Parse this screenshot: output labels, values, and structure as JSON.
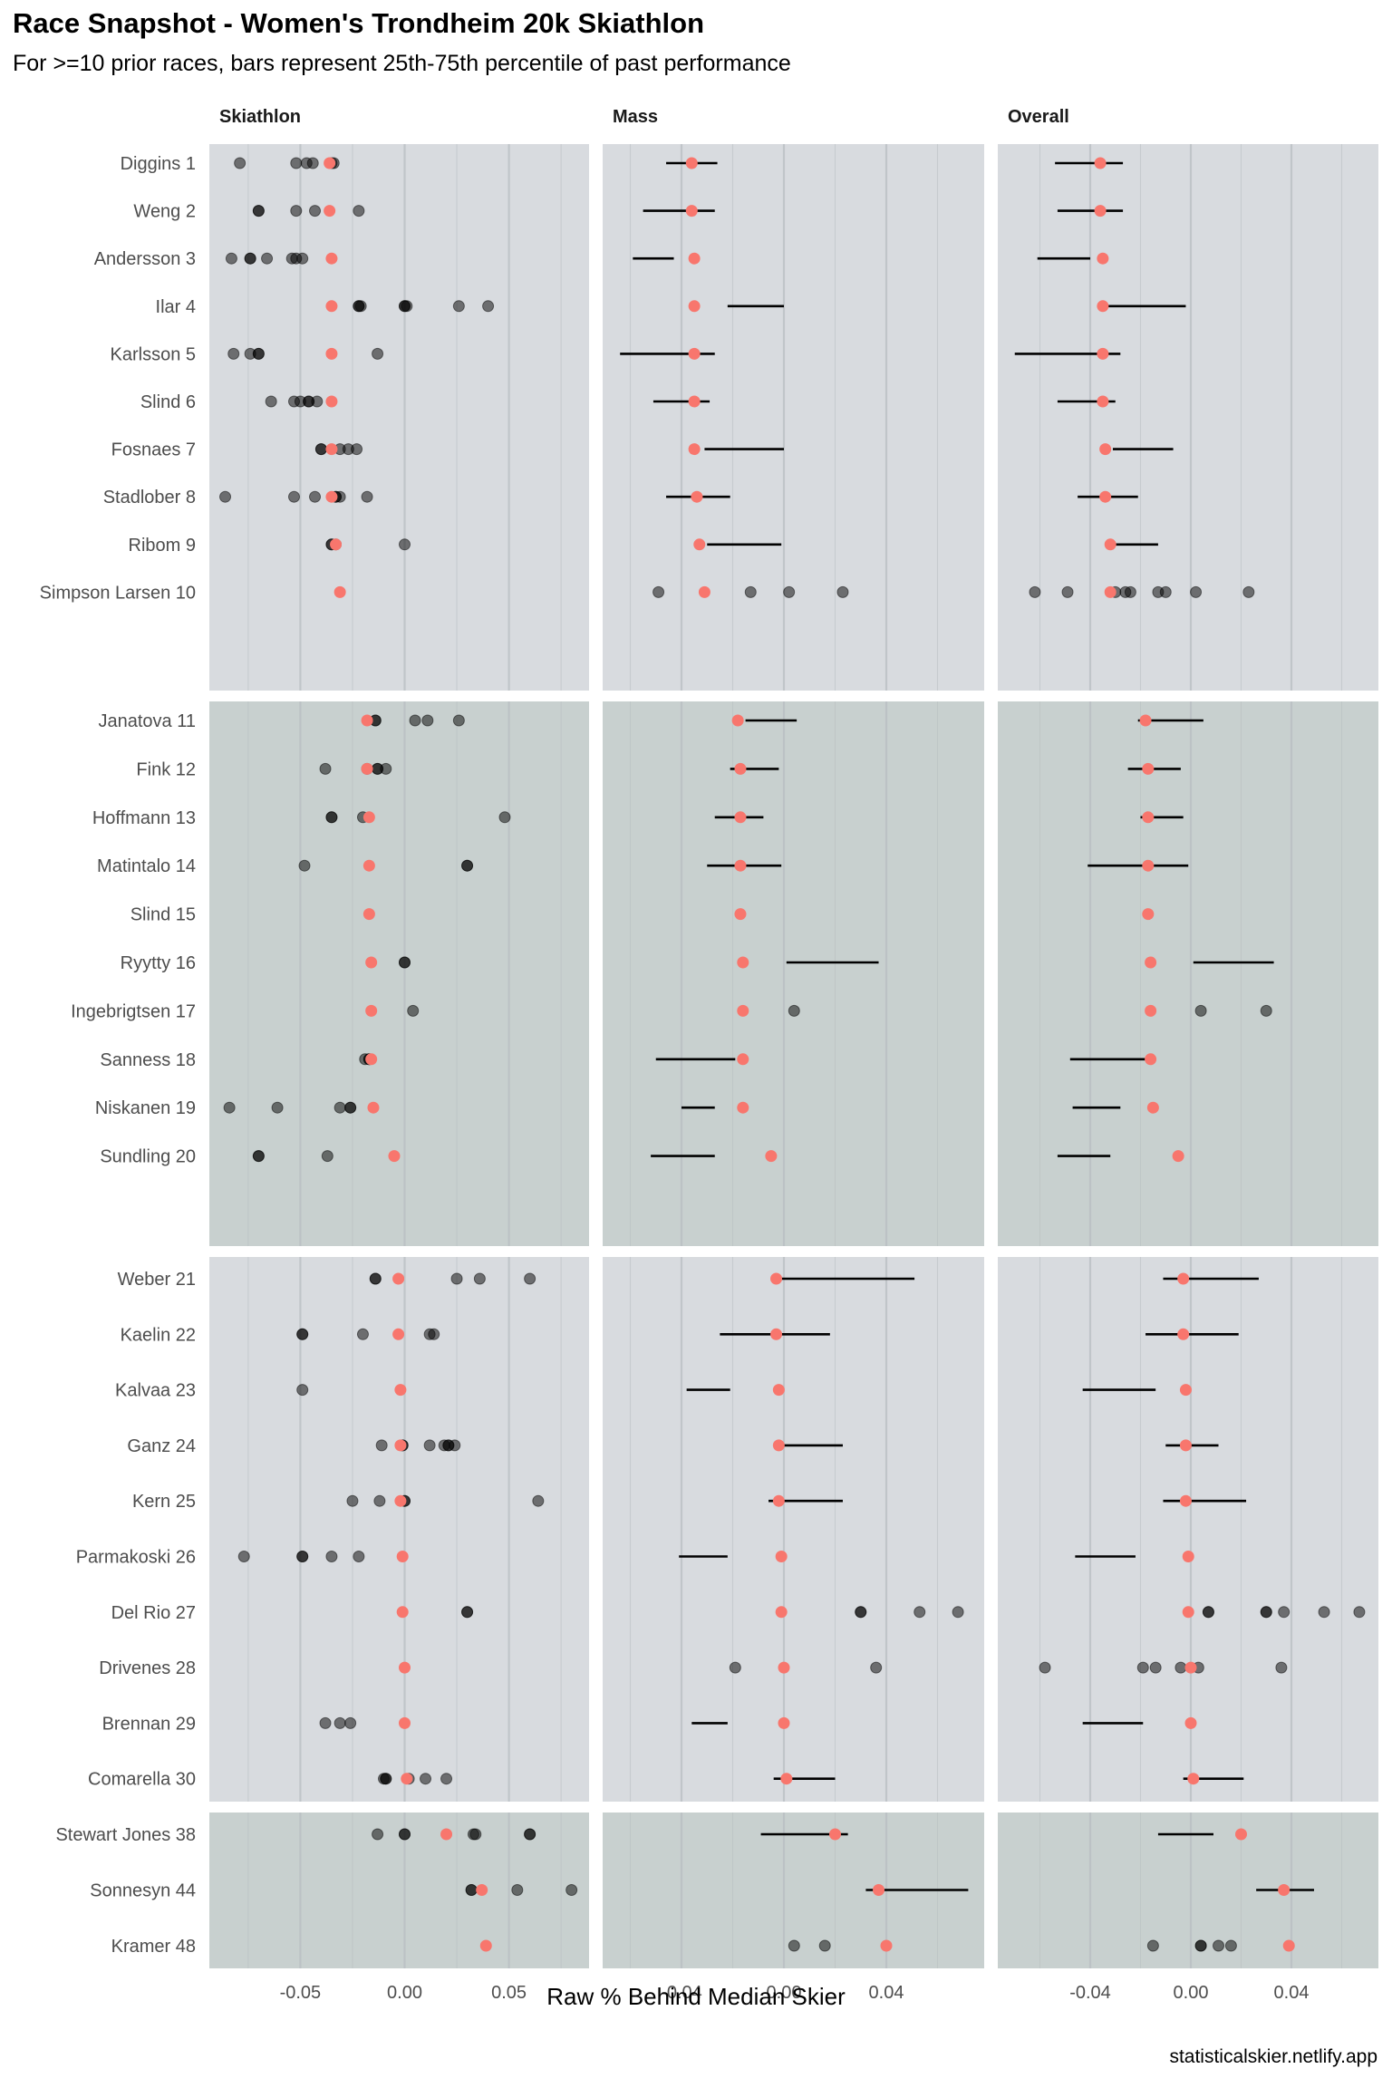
{
  "header": {
    "title": "Race Snapshot -  Women's Trondheim 20k Skiathlon",
    "subtitle": "For >=10 prior races, bars represent 25th-75th percentile of past performance"
  },
  "footer": {
    "credit": "statisticalskier.netlify.app"
  },
  "colors": {
    "current": "#f8766d",
    "history_point": "#000000",
    "iqr_bar": "#000000",
    "group_bg_a": "#d8dbdf",
    "group_bg_b": "#c8d0cf",
    "gridline": "#b9bec2"
  },
  "chart_data": {
    "type": "scatter",
    "title": "Race Snapshot -  Women's Trondheim 20k Skiathlon",
    "subtitle": "For >=10 prior races, bars represent 25th-75th percentile of past performance",
    "xlabel": "Raw % Behind Median Skier",
    "ylabel": "",
    "grid": true,
    "legend": "none",
    "facets": [
      {
        "name": "Skiathlon",
        "xlim": [
          -0.09,
          0.09
        ],
        "ticks": [
          -0.05,
          0.0,
          0.05
        ],
        "tick_labels": [
          "-0.05",
          "0.00",
          "0.05"
        ]
      },
      {
        "name": "Mass",
        "xlim": [
          -0.07,
          0.078
        ],
        "ticks": [
          -0.04,
          0.0,
          0.04
        ],
        "tick_labels": [
          "-0.04",
          "0.00",
          "0.04"
        ]
      },
      {
        "name": "Overall",
        "xlim": [
          -0.07,
          0.082
        ],
        "ticks": [
          -0.04,
          0.0,
          0.04
        ],
        "tick_labels": [
          "-0.04",
          "0.00",
          "0.04"
        ]
      }
    ],
    "groups": [
      [
        0,
        9
      ],
      [
        10,
        19
      ],
      [
        20,
        29
      ],
      [
        30,
        32
      ]
    ],
    "athletes": [
      {
        "label": "Diggins 1",
        "Skiathlon": {
          "current": -0.036,
          "past": [
            -0.079,
            -0.052,
            -0.047,
            -0.044,
            -0.035,
            -0.034
          ]
        },
        "Mass": {
          "current": -0.036,
          "iqr": [
            -0.046,
            -0.026
          ]
        },
        "Overall": {
          "current": -0.036,
          "iqr": [
            -0.054,
            -0.027
          ]
        }
      },
      {
        "label": "Weng 2",
        "Skiathlon": {
          "current": -0.036,
          "past": [
            -0.07,
            -0.07,
            -0.052,
            -0.043,
            -0.022
          ]
        },
        "Mass": {
          "current": -0.036,
          "iqr": [
            -0.055,
            -0.027
          ]
        },
        "Overall": {
          "current": -0.036,
          "iqr": [
            -0.053,
            -0.027
          ]
        }
      },
      {
        "label": "Andersson 3",
        "Skiathlon": {
          "current": -0.035,
          "past": [
            -0.083,
            -0.074,
            -0.074,
            -0.066,
            -0.054,
            -0.052,
            -0.049
          ]
        },
        "Mass": {
          "current": -0.035,
          "iqr": [
            -0.059,
            -0.043
          ]
        },
        "Overall": {
          "current": -0.035,
          "iqr": [
            -0.061,
            -0.04
          ]
        }
      },
      {
        "label": "Ilar 4",
        "Skiathlon": {
          "current": -0.035,
          "past": [
            -0.022,
            -0.022,
            -0.021,
            0.0,
            0.0,
            0.001,
            0.026,
            0.04
          ]
        },
        "Mass": {
          "current": -0.035,
          "iqr": [
            -0.022,
            0.0
          ]
        },
        "Overall": {
          "current": -0.035,
          "iqr": [
            -0.034,
            -0.002
          ]
        }
      },
      {
        "label": "Karlsson 5",
        "Skiathlon": {
          "current": -0.035,
          "past": [
            -0.082,
            -0.074,
            -0.07,
            -0.07,
            -0.013
          ]
        },
        "Mass": {
          "current": -0.035,
          "iqr": [
            -0.064,
            -0.027
          ]
        },
        "Overall": {
          "current": -0.035,
          "iqr": [
            -0.07,
            -0.028
          ]
        }
      },
      {
        "label": "Slind 6",
        "Skiathlon": {
          "current": -0.035,
          "past": [
            -0.064,
            -0.053,
            -0.05,
            -0.046,
            -0.046,
            -0.042
          ]
        },
        "Mass": {
          "current": -0.035,
          "iqr": [
            -0.051,
            -0.029
          ]
        },
        "Overall": {
          "current": -0.035,
          "iqr": [
            -0.053,
            -0.03
          ]
        }
      },
      {
        "label": "Fosnaes 7",
        "Skiathlon": {
          "current": -0.035,
          "past": [
            -0.04,
            -0.04,
            -0.031,
            -0.027,
            -0.023
          ]
        },
        "Mass": {
          "current": -0.035,
          "iqr": [
            -0.031,
            0.0
          ]
        },
        "Overall": {
          "current": -0.034,
          "iqr": [
            -0.031,
            -0.007
          ]
        }
      },
      {
        "label": "Stadlober 8",
        "Skiathlon": {
          "current": -0.035,
          "past": [
            -0.086,
            -0.053,
            -0.043,
            -0.033,
            -0.033,
            -0.031,
            -0.018
          ]
        },
        "Mass": {
          "current": -0.034,
          "iqr": [
            -0.046,
            -0.021
          ]
        },
        "Overall": {
          "current": -0.034,
          "iqr": [
            -0.045,
            -0.021
          ]
        }
      },
      {
        "label": "Ribom 9",
        "Skiathlon": {
          "current": -0.033,
          "past": [
            -0.035,
            -0.035,
            -0.033,
            0.0
          ]
        },
        "Mass": {
          "current": -0.033,
          "iqr": [
            -0.03,
            -0.001
          ]
        },
        "Overall": {
          "current": -0.032,
          "iqr": [
            -0.031,
            -0.013
          ]
        }
      },
      {
        "label": "Simpson Larsen 10",
        "Skiathlon": {
          "current": -0.031,
          "past": []
        },
        "Mass": {
          "current": -0.031,
          "past": [
            -0.049,
            -0.013,
            0.002,
            0.023
          ]
        },
        "Overall": {
          "current": -0.032,
          "past": [
            -0.062,
            -0.049,
            -0.03,
            -0.026,
            -0.024,
            -0.013,
            -0.01,
            0.002,
            0.023
          ]
        }
      },
      {
        "label": "Janatova 11",
        "Skiathlon": {
          "current": -0.018,
          "past": [
            -0.014,
            -0.014,
            0.005,
            0.011,
            0.026
          ]
        },
        "Mass": {
          "current": -0.018,
          "iqr": [
            -0.015,
            0.005
          ]
        },
        "Overall": {
          "current": -0.018,
          "iqr": [
            -0.021,
            0.005
          ]
        }
      },
      {
        "label": "Fink 12",
        "Skiathlon": {
          "current": -0.018,
          "past": [
            -0.038,
            -0.018,
            -0.013,
            -0.013,
            -0.009
          ]
        },
        "Mass": {
          "current": -0.017,
          "iqr": [
            -0.021,
            -0.002
          ]
        },
        "Overall": {
          "current": -0.017,
          "iqr": [
            -0.025,
            -0.004
          ]
        }
      },
      {
        "label": "Hoffmann 13",
        "Skiathlon": {
          "current": -0.017,
          "past": [
            -0.035,
            -0.035,
            -0.02,
            0.048
          ]
        },
        "Mass": {
          "current": -0.017,
          "iqr": [
            -0.027,
            -0.008
          ]
        },
        "Overall": {
          "current": -0.017,
          "iqr": [
            -0.02,
            -0.003
          ]
        }
      },
      {
        "label": "Matintalo 14",
        "Skiathlon": {
          "current": -0.017,
          "past": [
            -0.048,
            0.03,
            0.03
          ]
        },
        "Mass": {
          "current": -0.017,
          "iqr": [
            -0.03,
            -0.001
          ]
        },
        "Overall": {
          "current": -0.017,
          "iqr": [
            -0.041,
            -0.001
          ]
        }
      },
      {
        "label": "Slind 15",
        "Skiathlon": {
          "current": -0.017,
          "past": []
        },
        "Mass": {
          "current": -0.017,
          "past": []
        },
        "Overall": {
          "current": -0.017,
          "past": []
        }
      },
      {
        "label": "Ryytty 16",
        "Skiathlon": {
          "current": -0.016,
          "past": [
            0.0,
            0.0
          ]
        },
        "Mass": {
          "current": -0.016,
          "iqr": [
            0.001,
            0.037
          ]
        },
        "Overall": {
          "current": -0.016,
          "iqr": [
            0.001,
            0.033
          ]
        }
      },
      {
        "label": "Ingebrigtsen 17",
        "Skiathlon": {
          "current": -0.016,
          "past": [
            0.004
          ]
        },
        "Mass": {
          "current": -0.016,
          "past": [
            0.004
          ]
        },
        "Overall": {
          "current": -0.016,
          "past": [
            0.004,
            0.03
          ]
        }
      },
      {
        "label": "Sanness 18",
        "Skiathlon": {
          "current": -0.016,
          "past": [
            -0.019,
            -0.017,
            -0.017
          ]
        },
        "Mass": {
          "current": -0.016,
          "iqr": [
            -0.05,
            -0.019
          ]
        },
        "Overall": {
          "current": -0.016,
          "iqr": [
            -0.048,
            -0.016
          ]
        }
      },
      {
        "label": "Niskanen 19",
        "Skiathlon": {
          "current": -0.015,
          "past": [
            -0.084,
            -0.061,
            -0.031,
            -0.026,
            -0.026
          ]
        },
        "Mass": {
          "current": -0.016,
          "iqr": [
            -0.04,
            -0.027
          ]
        },
        "Overall": {
          "current": -0.015,
          "iqr": [
            -0.047,
            -0.028
          ]
        }
      },
      {
        "label": "Sundling 20",
        "Skiathlon": {
          "current": -0.005,
          "past": [
            -0.07,
            -0.07,
            -0.037
          ]
        },
        "Mass": {
          "current": -0.005,
          "iqr": [
            -0.052,
            -0.027
          ]
        },
        "Overall": {
          "current": -0.005,
          "iqr": [
            -0.053,
            -0.032
          ]
        }
      },
      {
        "label": "Weber 21",
        "Skiathlon": {
          "current": -0.003,
          "past": [
            -0.014,
            -0.014,
            0.025,
            0.036,
            0.06
          ]
        },
        "Mass": {
          "current": -0.003,
          "iqr": [
            -0.001,
            0.051
          ]
        },
        "Overall": {
          "current": -0.003,
          "iqr": [
            -0.011,
            0.027
          ]
        }
      },
      {
        "label": "Kaelin 22",
        "Skiathlon": {
          "current": -0.003,
          "past": [
            -0.049,
            -0.049,
            -0.02,
            0.012,
            0.014
          ]
        },
        "Mass": {
          "current": -0.003,
          "iqr": [
            -0.025,
            0.018
          ]
        },
        "Overall": {
          "current": -0.003,
          "iqr": [
            -0.018,
            0.019
          ]
        }
      },
      {
        "label": "Kalvaa 23",
        "Skiathlon": {
          "current": -0.002,
          "past": [
            -0.049
          ]
        },
        "Mass": {
          "current": -0.002,
          "iqr": [
            -0.038,
            -0.021
          ]
        },
        "Overall": {
          "current": -0.002,
          "iqr": [
            -0.043,
            -0.014
          ]
        }
      },
      {
        "label": "Ganz 24",
        "Skiathlon": {
          "current": -0.002,
          "past": [
            -0.011,
            -0.001,
            -0.001,
            0.012,
            0.019,
            0.021,
            0.021,
            0.024
          ]
        },
        "Mass": {
          "current": -0.002,
          "iqr": [
            0.0,
            0.023
          ]
        },
        "Overall": {
          "current": -0.002,
          "iqr": [
            -0.01,
            0.011
          ]
        }
      },
      {
        "label": "Kern 25",
        "Skiathlon": {
          "current": -0.002,
          "past": [
            -0.025,
            -0.012,
            0.0,
            0.0,
            0.064
          ]
        },
        "Mass": {
          "current": -0.002,
          "iqr": [
            -0.006,
            0.023
          ]
        },
        "Overall": {
          "current": -0.002,
          "iqr": [
            -0.011,
            0.022
          ]
        }
      },
      {
        "label": "Parmakoski 26",
        "Skiathlon": {
          "current": -0.001,
          "past": [
            -0.077,
            -0.049,
            -0.049,
            -0.035,
            -0.022
          ]
        },
        "Mass": {
          "current": -0.001,
          "iqr": [
            -0.041,
            -0.022
          ]
        },
        "Overall": {
          "current": -0.001,
          "iqr": [
            -0.046,
            -0.022
          ]
        }
      },
      {
        "label": "Del Rio 27",
        "Skiathlon": {
          "current": -0.001,
          "past": [
            0.03,
            0.03
          ]
        },
        "Mass": {
          "current": -0.001,
          "past": [
            0.03,
            0.03,
            0.053,
            0.068
          ]
        },
        "Overall": {
          "current": -0.001,
          "past": [
            0.007,
            0.007,
            0.03,
            0.03,
            0.037,
            0.053,
            0.067
          ]
        }
      },
      {
        "label": "Drivenes 28",
        "Skiathlon": {
          "current": 0.0,
          "past": []
        },
        "Mass": {
          "current": 0.0,
          "past": [
            -0.019,
            0.036
          ]
        },
        "Overall": {
          "current": 0.0,
          "past": [
            -0.058,
            -0.019,
            -0.014,
            -0.004,
            0.003,
            0.036
          ]
        }
      },
      {
        "label": "Brennan 29",
        "Skiathlon": {
          "current": 0.0,
          "past": [
            -0.038,
            -0.031,
            -0.026
          ]
        },
        "Mass": {
          "current": 0.0,
          "iqr": [
            -0.036,
            -0.022
          ]
        },
        "Overall": {
          "current": 0.0,
          "iqr": [
            -0.043,
            -0.019
          ]
        }
      },
      {
        "label": "Comarella 30",
        "Skiathlon": {
          "current": 0.001,
          "past": [
            -0.01,
            -0.009,
            -0.009,
            0.002,
            0.01,
            0.02
          ]
        },
        "Mass": {
          "current": 0.001,
          "iqr": [
            -0.004,
            0.02
          ]
        },
        "Overall": {
          "current": 0.001,
          "iqr": [
            -0.003,
            0.021
          ]
        }
      },
      {
        "label": "Stewart Jones 38",
        "Skiathlon": {
          "current": 0.02,
          "past": [
            -0.013,
            0.0,
            0.0,
            0.033,
            0.034,
            0.06,
            0.06
          ]
        },
        "Mass": {
          "current": 0.02,
          "iqr": [
            -0.009,
            0.025
          ]
        },
        "Overall": {
          "current": 0.02,
          "iqr": [
            -0.013,
            0.009
          ]
        }
      },
      {
        "label": "Sonnesyn 44",
        "Skiathlon": {
          "current": 0.037,
          "past": [
            0.032,
            0.032,
            0.054,
            0.08
          ]
        },
        "Mass": {
          "current": 0.037,
          "iqr": [
            0.032,
            0.072
          ]
        },
        "Overall": {
          "current": 0.037,
          "iqr": [
            0.026,
            0.049
          ]
        }
      },
      {
        "label": "Kramer 48",
        "Skiathlon": {
          "current": 0.039,
          "past": []
        },
        "Mass": {
          "current": 0.04,
          "past": [
            0.004,
            0.016
          ]
        },
        "Overall": {
          "current": 0.039,
          "past": [
            -0.015,
            0.004,
            0.004,
            0.011,
            0.016
          ]
        }
      }
    ]
  }
}
